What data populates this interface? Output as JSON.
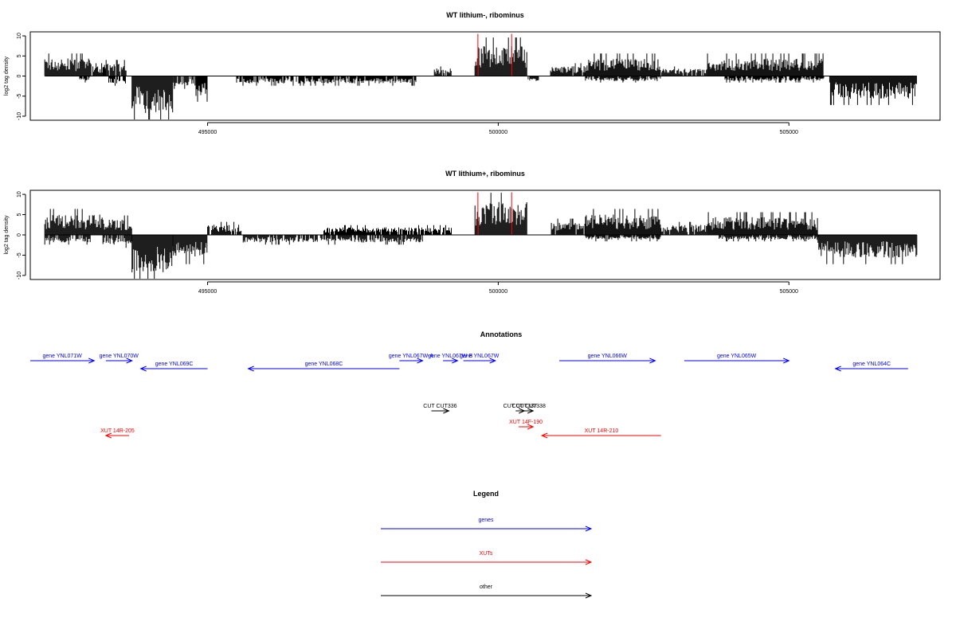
{
  "colors": {
    "genes": "#0000ff",
    "xuts": "#ff0000",
    "other": "#000000",
    "highlight": "#ff0000",
    "bars": "#000000"
  },
  "chart_data": [
    {
      "type": "bar",
      "title": "WT lithium-, ribominus",
      "ylabel": "log2 tag density",
      "xlim": [
        491950,
        507600
      ],
      "ylim": [
        -11,
        11
      ],
      "x_ticks": [
        495000,
        500000,
        505000
      ],
      "y_ticks": [
        10,
        5,
        0,
        -5,
        -10
      ],
      "segments": [
        {
          "start": 492200,
          "end": 493000,
          "strand": "+",
          "level": 3.5
        },
        {
          "start": 492800,
          "end": 493000,
          "strand": "-",
          "level": 1
        },
        {
          "start": 493000,
          "end": 493250,
          "strand": "+",
          "level": 2
        },
        {
          "start": 493200,
          "end": 493600,
          "strand": "+",
          "level": 2.5
        },
        {
          "start": 493300,
          "end": 493600,
          "strand": "-",
          "level": 1.5
        },
        {
          "start": 493700,
          "end": 494400,
          "strand": "-",
          "level": 7.5
        },
        {
          "start": 494400,
          "end": 494800,
          "strand": "-",
          "level": 2
        },
        {
          "start": 494800,
          "end": 495000,
          "strand": "-",
          "level": 4
        },
        {
          "start": 495500,
          "end": 498600,
          "strand": "-",
          "level": 1.5
        },
        {
          "start": 498900,
          "end": 499200,
          "strand": "+",
          "level": 1.5
        },
        {
          "start": 499600,
          "end": 500500,
          "strand": "+",
          "level": 6
        },
        {
          "start": 500500,
          "end": 500700,
          "strand": "-",
          "level": 1
        },
        {
          "start": 500900,
          "end": 501500,
          "strand": "+",
          "level": 2
        },
        {
          "start": 501500,
          "end": 502800,
          "strand": "+",
          "level": 3.5
        },
        {
          "start": 501500,
          "end": 502800,
          "strand": "-",
          "level": 1
        },
        {
          "start": 502800,
          "end": 503600,
          "strand": "+",
          "level": 1.5
        },
        {
          "start": 503600,
          "end": 505600,
          "strand": "+",
          "level": 3.5
        },
        {
          "start": 503900,
          "end": 505600,
          "strand": "-",
          "level": 1
        },
        {
          "start": 505700,
          "end": 507200,
          "strand": "-",
          "level": 4.5
        }
      ],
      "red_lines": [
        {
          "x": 499650,
          "y": 10.5
        },
        {
          "x": 500230,
          "y": 10.5
        }
      ]
    },
    {
      "type": "bar",
      "title": "WT lithium+, ribominus",
      "ylabel": "log2 tag density",
      "xlim": [
        491950,
        507600
      ],
      "ylim": [
        -11,
        11
      ],
      "x_ticks": [
        495000,
        500000,
        505000
      ],
      "y_ticks": [
        10,
        5,
        0,
        -5,
        -10
      ],
      "segments": [
        {
          "start": 492200,
          "end": 493200,
          "strand": "+",
          "level": 4
        },
        {
          "start": 492200,
          "end": 493000,
          "strand": "-",
          "level": 1.5
        },
        {
          "start": 493200,
          "end": 493700,
          "strand": "+",
          "level": 3
        },
        {
          "start": 493200,
          "end": 493700,
          "strand": "-",
          "level": 2
        },
        {
          "start": 493700,
          "end": 494400,
          "strand": "-",
          "level": 7.5
        },
        {
          "start": 494400,
          "end": 495000,
          "strand": "-",
          "level": 4.5
        },
        {
          "start": 495000,
          "end": 495600,
          "strand": "+",
          "level": 2
        },
        {
          "start": 495600,
          "end": 498700,
          "strand": "-",
          "level": 1.5
        },
        {
          "start": 497000,
          "end": 499200,
          "strand": "+",
          "level": 1.5
        },
        {
          "start": 499600,
          "end": 500500,
          "strand": "+",
          "level": 6.5
        },
        {
          "start": 500900,
          "end": 501500,
          "strand": "+",
          "level": 2.5
        },
        {
          "start": 501500,
          "end": 502800,
          "strand": "+",
          "level": 4
        },
        {
          "start": 501500,
          "end": 502800,
          "strand": "-",
          "level": 1
        },
        {
          "start": 502800,
          "end": 503600,
          "strand": "+",
          "level": 2
        },
        {
          "start": 503600,
          "end": 505500,
          "strand": "+",
          "level": 3.5
        },
        {
          "start": 503800,
          "end": 505500,
          "strand": "-",
          "level": 1
        },
        {
          "start": 505500,
          "end": 507200,
          "strand": "-",
          "level": 4.5
        }
      ],
      "red_lines": [
        {
          "x": 499650,
          "y": 10.5
        },
        {
          "x": 500230,
          "y": 10.5
        }
      ]
    }
  ],
  "annotations": {
    "title": "Annotations",
    "features": [
      {
        "label": "gene YNL071W",
        "type": "genes",
        "start": 491950,
        "end": 493050,
        "dir": "+",
        "row": 0
      },
      {
        "label": "gene YNL070W",
        "type": "genes",
        "start": 493250,
        "end": 493700,
        "dir": "+",
        "row": 0
      },
      {
        "label": "gene YNL069C",
        "type": "genes",
        "start": 493850,
        "end": 495000,
        "dir": "-",
        "row": 1
      },
      {
        "label": "gene YNL068C",
        "type": "genes",
        "start": 495700,
        "end": 498300,
        "dir": "-",
        "row": 1
      },
      {
        "label": "gene YNL067W-A",
        "type": "genes",
        "start": 498300,
        "end": 498700,
        "dir": "+",
        "row": 0
      },
      {
        "label": "gene YNL067W-B",
        "type": "genes",
        "start": 499050,
        "end": 499300,
        "dir": "+",
        "row": 0
      },
      {
        "label": "gene YNL067W",
        "type": "genes",
        "start": 499400,
        "end": 499950,
        "dir": "+",
        "row": 0
      },
      {
        "label": "gene YNL066W",
        "type": "genes",
        "start": 501050,
        "end": 502700,
        "dir": "+",
        "row": 0
      },
      {
        "label": "gene YNL065W",
        "type": "genes",
        "start": 503200,
        "end": 505000,
        "dir": "+",
        "row": 0
      },
      {
        "label": "gene YNL064C",
        "type": "genes",
        "start": 505800,
        "end": 507050,
        "dir": "-",
        "row": 1
      },
      {
        "label": "CUT CUT336",
        "type": "other",
        "start": 498850,
        "end": 499150,
        "dir": "+",
        "row": 2
      },
      {
        "label": "CUT CUT337",
        "type": "other",
        "start": 500300,
        "end": 500450,
        "dir": "+",
        "row": 2
      },
      {
        "label": "CUT CUT338",
        "type": "other",
        "start": 500450,
        "end": 500600,
        "dir": "+",
        "row": 2
      },
      {
        "label": "XUT 14F-190",
        "type": "xuts",
        "start": 500350,
        "end": 500600,
        "dir": "+",
        "row": 3
      },
      {
        "label": "XUT 14R-205",
        "type": "xuts",
        "start": 493250,
        "end": 493650,
        "dir": "-",
        "row": 4
      },
      {
        "label": "XUT 14R-210",
        "type": "xuts",
        "start": 500750,
        "end": 502800,
        "dir": "-",
        "row": 4
      }
    ]
  },
  "legend": {
    "title": "Legend",
    "items": [
      {
        "label": "genes",
        "type": "genes"
      },
      {
        "label": "XUTs",
        "type": "xuts"
      },
      {
        "label": "other",
        "type": "other"
      }
    ]
  }
}
